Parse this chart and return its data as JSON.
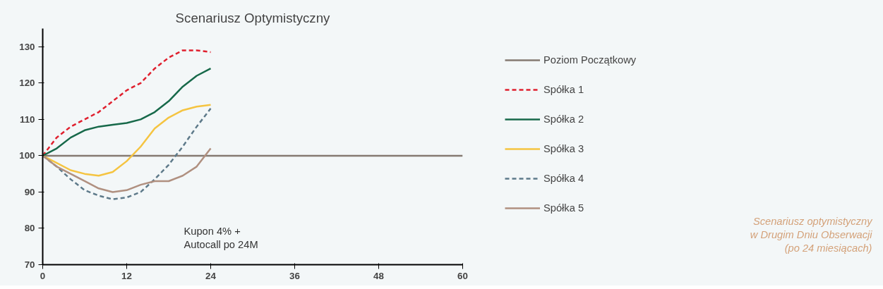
{
  "chart_data": {
    "type": "line",
    "title": "Scenariusz Optymistyczny",
    "x": [
      0,
      2,
      4,
      6,
      8,
      10,
      12,
      14,
      16,
      18,
      20,
      22,
      24
    ],
    "xlim": [
      0,
      60
    ],
    "xticks": [
      0,
      12,
      24,
      36,
      48,
      60
    ],
    "ylim": [
      70,
      135
    ],
    "yticks": [
      70,
      80,
      90,
      100,
      110,
      120,
      130
    ],
    "grid": false,
    "legend": "right",
    "series": [
      {
        "name": "Poziom Początkowy",
        "color": "#857a72",
        "x": [
          0,
          60
        ],
        "values": [
          100,
          100
        ]
      },
      {
        "name": "Spółka 1",
        "color": "#e0202e",
        "line_style": "dashed",
        "values": [
          100,
          105,
          108,
          110,
          112,
          115,
          118,
          120,
          124,
          127,
          129,
          129,
          128.5
        ]
      },
      {
        "name": "Spółka 2",
        "color": "#17694a",
        "values": [
          100,
          102,
          105,
          107,
          108,
          108.5,
          109,
          110,
          112,
          115,
          119,
          122,
          124
        ]
      },
      {
        "name": "Spółka 3",
        "color": "#f5c441",
        "values": [
          100,
          98,
          96,
          95,
          94.5,
          95.5,
          98.5,
          102.5,
          107.5,
          110.5,
          112.5,
          113.5,
          114
        ]
      },
      {
        "name": "Spółka 4",
        "color": "#5e7a8a",
        "line_style": "dashed",
        "values": [
          100,
          97,
          93.5,
          90.5,
          89,
          88,
          88.5,
          90,
          93.5,
          97.5,
          102.5,
          108,
          113
        ]
      },
      {
        "name": "Spółka 5",
        "color": "#b09080",
        "values": [
          100,
          97,
          95,
          93,
          91,
          90,
          90.5,
          92,
          93,
          93,
          94.5,
          97,
          102
        ]
      }
    ],
    "annotations": [
      "Kupon 4% +\nAutocall po 24M",
      "Scenariusz optymistyczny\nw Drugim Dniu Obserwacji\n(po 24 miesiącach)"
    ]
  }
}
